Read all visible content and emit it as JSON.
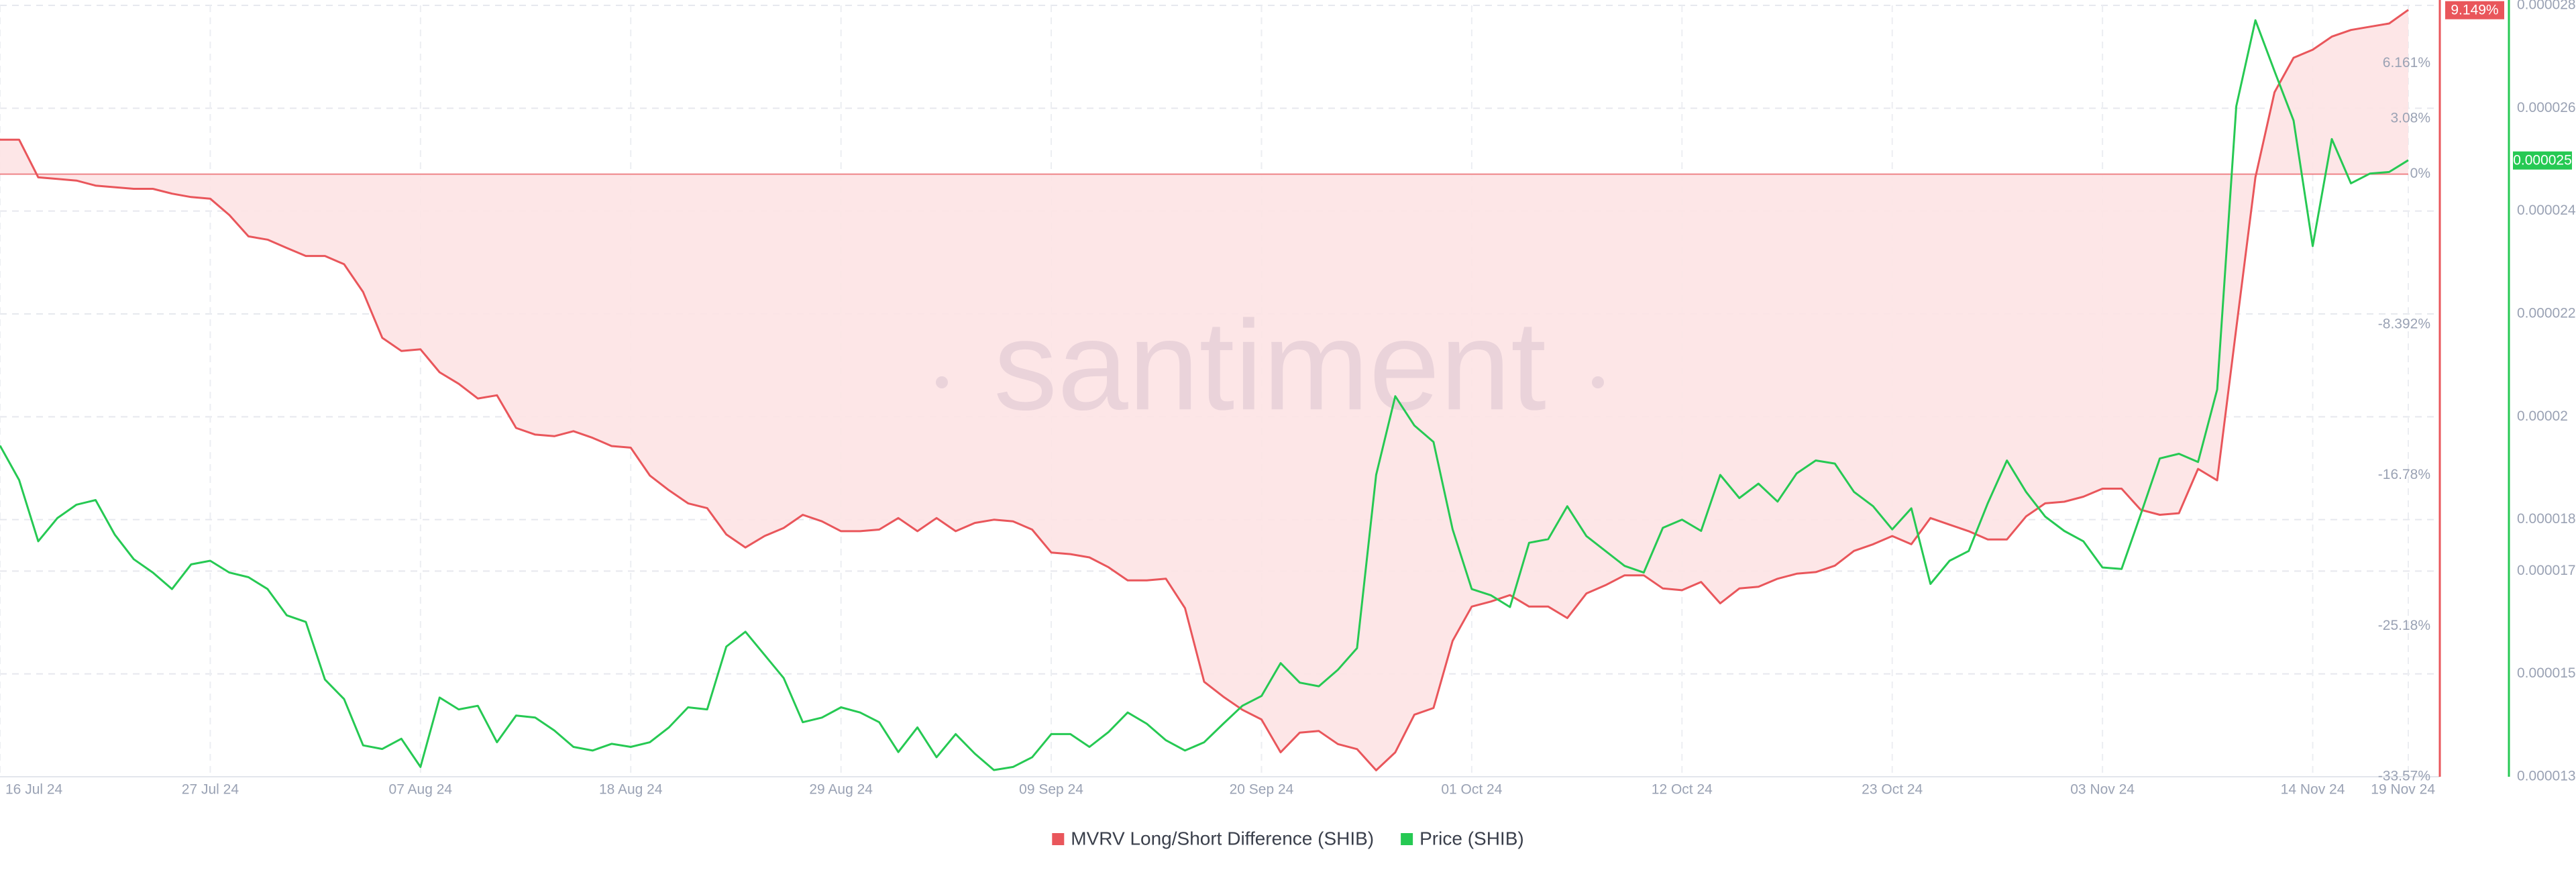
{
  "chart_data": {
    "type": "line",
    "watermark": "santiment",
    "x": [
      "2024-07-16",
      "2024-07-17",
      "2024-07-18",
      "2024-07-19",
      "2024-07-20",
      "2024-07-21",
      "2024-07-22",
      "2024-07-23",
      "2024-07-24",
      "2024-07-25",
      "2024-07-26",
      "2024-07-27",
      "2024-07-28",
      "2024-07-29",
      "2024-07-30",
      "2024-07-31",
      "2024-08-01",
      "2024-08-02",
      "2024-08-03",
      "2024-08-04",
      "2024-08-05",
      "2024-08-06",
      "2024-08-07",
      "2024-08-08",
      "2024-08-09",
      "2024-08-10",
      "2024-08-11",
      "2024-08-12",
      "2024-08-13",
      "2024-08-14",
      "2024-08-15",
      "2024-08-16",
      "2024-08-17",
      "2024-08-18",
      "2024-08-19",
      "2024-08-20",
      "2024-08-21",
      "2024-08-22",
      "2024-08-23",
      "2024-08-24",
      "2024-08-25",
      "2024-08-26",
      "2024-08-27",
      "2024-08-28",
      "2024-08-29",
      "2024-08-30",
      "2024-08-31",
      "2024-09-01",
      "2024-09-02",
      "2024-09-03",
      "2024-09-04",
      "2024-09-05",
      "2024-09-06",
      "2024-09-07",
      "2024-09-08",
      "2024-09-09",
      "2024-09-10",
      "2024-09-11",
      "2024-09-12",
      "2024-09-13",
      "2024-09-14",
      "2024-09-15",
      "2024-09-16",
      "2024-09-17",
      "2024-09-18",
      "2024-09-19",
      "2024-09-20",
      "2024-09-21",
      "2024-09-22",
      "2024-09-23",
      "2024-09-24",
      "2024-09-25",
      "2024-09-26",
      "2024-09-27",
      "2024-09-28",
      "2024-09-29",
      "2024-09-30",
      "2024-10-01",
      "2024-10-02",
      "2024-10-03",
      "2024-10-04",
      "2024-10-05",
      "2024-10-06",
      "2024-10-07",
      "2024-10-08",
      "2024-10-09",
      "2024-10-10",
      "2024-10-11",
      "2024-10-12",
      "2024-10-13",
      "2024-10-14",
      "2024-10-15",
      "2024-10-16",
      "2024-10-17",
      "2024-10-18",
      "2024-10-19",
      "2024-10-20",
      "2024-10-21",
      "2024-10-22",
      "2024-10-23",
      "2024-10-24",
      "2024-10-25",
      "2024-10-26",
      "2024-10-27",
      "2024-10-28",
      "2024-10-29",
      "2024-10-30",
      "2024-10-31",
      "2024-11-01",
      "2024-11-02",
      "2024-11-03",
      "2024-11-04",
      "2024-11-05",
      "2024-11-06",
      "2024-11-07",
      "2024-11-08",
      "2024-11-09",
      "2024-11-10",
      "2024-11-11",
      "2024-11-12",
      "2024-11-13",
      "2024-11-14",
      "2024-11-15",
      "2024-11-16",
      "2024-11-17",
      "2024-11-18",
      "2024-11-19"
    ],
    "xticks": [
      {
        "value": "2024-07-16",
        "label": "16 Jul 24"
      },
      {
        "value": "2024-07-27",
        "label": "27 Jul 24"
      },
      {
        "value": "2024-08-07",
        "label": "07 Aug 24"
      },
      {
        "value": "2024-08-18",
        "label": "18 Aug 24"
      },
      {
        "value": "2024-08-29",
        "label": "29 Aug 24"
      },
      {
        "value": "2024-09-09",
        "label": "09 Sep 24"
      },
      {
        "value": "2024-09-20",
        "label": "20 Sep 24"
      },
      {
        "value": "2024-10-01",
        "label": "01 Oct 24"
      },
      {
        "value": "2024-10-12",
        "label": "12 Oct 24"
      },
      {
        "value": "2024-10-23",
        "label": "23 Oct 24"
      },
      {
        "value": "2024-11-03",
        "label": "03 Nov 24"
      },
      {
        "value": "2024-11-14",
        "label": "14 Nov 24"
      },
      {
        "value": "2024-11-19",
        "label": "19 Nov 24"
      }
    ],
    "ylim": [
      -33.57,
      9.4
    ],
    "yticks": [
      {
        "value": -33.57,
        "label": "-33.57%"
      },
      {
        "value": -25.18,
        "label": "-25.18%"
      },
      {
        "value": -16.78,
        "label": "-16.78%"
      },
      {
        "value": -8.392,
        "label": "-8.392%"
      },
      {
        "value": 0,
        "label": "0%"
      },
      {
        "value": 3.08,
        "label": "3.08%"
      },
      {
        "value": 6.161,
        "label": "6.161%"
      }
    ],
    "y2lim": [
      1.3e-05,
      2.8e-05
    ],
    "y2ticks": [
      1.3e-05,
      1.5e-05,
      1.7e-05,
      1.8e-05,
      2e-05,
      2.2e-05,
      2.4e-05,
      2.6e-05,
      2.8e-05
    ],
    "grid": true,
    "legend": "bottom",
    "series": [
      {
        "name": "MVRV Long/Short Difference (SHIB)",
        "color": "#e9565b",
        "fill": "#fde3e4",
        "last_label": "9.149%",
        "values": [
          1.92,
          1.92,
          -0.18,
          -0.27,
          -0.36,
          -0.64,
          -0.73,
          -0.82,
          -0.82,
          -1.09,
          -1.28,
          -1.37,
          -2.28,
          -3.47,
          -3.65,
          -4.11,
          -4.56,
          -4.56,
          -5.02,
          -6.57,
          -9.12,
          -9.85,
          -9.76,
          -11.04,
          -11.68,
          -12.5,
          -12.32,
          -14.14,
          -14.51,
          -14.6,
          -14.32,
          -14.69,
          -15.15,
          -15.24,
          -16.79,
          -17.61,
          -18.34,
          -18.61,
          -20.07,
          -20.8,
          -20.16,
          -19.71,
          -18.98,
          -19.34,
          -19.89,
          -19.89,
          -19.8,
          -19.16,
          -19.89,
          -19.16,
          -19.89,
          -19.43,
          -19.25,
          -19.34,
          -19.8,
          -21.08,
          -21.17,
          -21.35,
          -21.9,
          -22.63,
          -22.63,
          -22.54,
          -24.18,
          -28.28,
          -29.11,
          -29.84,
          -30.38,
          -32.21,
          -31.11,
          -31.02,
          -31.75,
          -32.03,
          -33.21,
          -32.21,
          -30.11,
          -29.74,
          -26,
          -24.09,
          -23.81,
          -23.45,
          -24.09,
          -24.09,
          -24.73,
          -23.36,
          -22.9,
          -22.35,
          -22.35,
          -23.08,
          -23.18,
          -22.72,
          -23.91,
          -23.08,
          -22.99,
          -22.54,
          -22.26,
          -22.17,
          -21.81,
          -20.99,
          -20.62,
          -20.16,
          -20.62,
          -19.16,
          -19.53,
          -19.89,
          -20.35,
          -20.35,
          -19.07,
          -18.34,
          -18.25,
          -17.97,
          -17.52,
          -17.52,
          -18.7,
          -18.98,
          -18.89,
          -16.42,
          -17.06,
          -8.58,
          -0.18,
          4.56,
          6.48,
          6.93,
          7.66,
          8.03,
          8.21,
          8.39,
          9.149
        ]
      },
      {
        "name": "Price (SHIB)",
        "color": "#26c953",
        "axis": "y2",
        "last_label": "0.000025",
        "values": [
          1.944e-05,
          1.877e-05,
          1.758e-05,
          1.803e-05,
          1.829e-05,
          1.838e-05,
          1.771e-05,
          1.723e-05,
          1.697e-05,
          1.665e-05,
          1.713e-05,
          1.72e-05,
          1.697e-05,
          1.688e-05,
          1.665e-05,
          1.614e-05,
          1.601e-05,
          1.489e-05,
          1.451e-05,
          1.361e-05,
          1.354e-05,
          1.374e-05,
          1.319e-05,
          1.454e-05,
          1.431e-05,
          1.438e-05,
          1.367e-05,
          1.419e-05,
          1.415e-05,
          1.39e-05,
          1.358e-05,
          1.351e-05,
          1.364e-05,
          1.358e-05,
          1.367e-05,
          1.396e-05,
          1.435e-05,
          1.431e-05,
          1.553e-05,
          1.582e-05,
          1.537e-05,
          1.492e-05,
          1.406e-05,
          1.415e-05,
          1.435e-05,
          1.425e-05,
          1.406e-05,
          1.348e-05,
          1.396e-05,
          1.338e-05,
          1.383e-05,
          1.345e-05,
          1.313e-05,
          1.319e-05,
          1.338e-05,
          1.383e-05,
          1.383e-05,
          1.358e-05,
          1.387e-05,
          1.425e-05,
          1.403e-05,
          1.371e-05,
          1.351e-05,
          1.367e-05,
          1.403e-05,
          1.438e-05,
          1.457e-05,
          1.521e-05,
          1.483e-05,
          1.476e-05,
          1.508e-05,
          1.55e-05,
          1.887e-05,
          2.04e-05,
          1.983e-05,
          1.951e-05,
          1.781e-05,
          1.665e-05,
          1.653e-05,
          1.63e-05,
          1.755e-05,
          1.762e-05,
          1.826e-05,
          1.768e-05,
          1.739e-05,
          1.71e-05,
          1.697e-05,
          1.784e-05,
          1.8e-05,
          1.778e-05,
          1.887e-05,
          1.842e-05,
          1.87e-05,
          1.835e-05,
          1.89e-05,
          1.915e-05,
          1.909e-05,
          1.854e-05,
          1.826e-05,
          1.781e-05,
          1.822e-05,
          1.675e-05,
          1.72e-05,
          1.739e-05,
          1.832e-05,
          1.915e-05,
          1.854e-05,
          1.806e-05,
          1.778e-05,
          1.758e-05,
          1.707e-05,
          1.704e-05,
          1.81e-05,
          1.919e-05,
          1.928e-05,
          1.912e-05,
          2.053e-05,
          2.604e-05,
          2.771e-05,
          2.672e-05,
          2.576e-05,
          2.332e-05,
          2.54e-05,
          2.454e-05,
          2.473e-05,
          2.476e-05,
          2.499e-05
        ]
      }
    ]
  }
}
